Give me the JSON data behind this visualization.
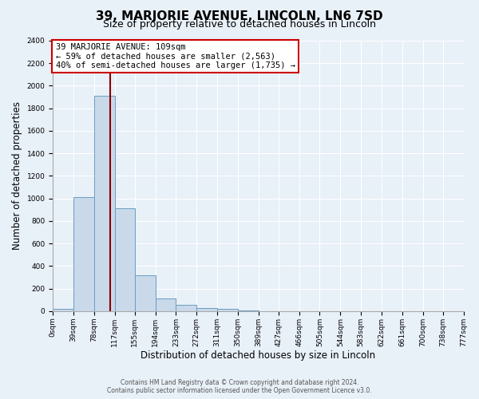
{
  "title": "39, MARJORIE AVENUE, LINCOLN, LN6 7SD",
  "subtitle": "Size of property relative to detached houses in Lincoln",
  "xlabel": "Distribution of detached houses by size in Lincoln",
  "ylabel": "Number of detached properties",
  "bin_edges": [
    0,
    39,
    78,
    117,
    155,
    194,
    233,
    272,
    311,
    350,
    389,
    427,
    466,
    505,
    544,
    583,
    622,
    661,
    700,
    738,
    777
  ],
  "counts": [
    20,
    1010,
    1910,
    910,
    320,
    110,
    55,
    30,
    20,
    5,
    1,
    0,
    0,
    0,
    0,
    0,
    0,
    0,
    0,
    0
  ],
  "bar_color": "#c9d9ea",
  "bar_edge_color": "#6b9dc2",
  "property_line_x": 109,
  "property_line_color": "#8b0000",
  "annotation_line1": "39 MARJORIE AVENUE: 109sqm",
  "annotation_line2": "← 59% of detached houses are smaller (2,563)",
  "annotation_line3": "40% of semi-detached houses are larger (1,735) →",
  "annotation_box_color": "#ffffff",
  "annotation_box_edge_color": "#cc0000",
  "ylim": [
    0,
    2400
  ],
  "yticks": [
    0,
    200,
    400,
    600,
    800,
    1000,
    1200,
    1400,
    1600,
    1800,
    2000,
    2200,
    2400
  ],
  "bg_color": "#e8f0f8",
  "plot_bg_color": "#e8f0f8",
  "footer1": "Contains HM Land Registry data © Crown copyright and database right 2024.",
  "footer2": "Contains public sector information licensed under the Open Government Licence v3.0.",
  "title_fontsize": 11,
  "subtitle_fontsize": 9,
  "tick_label_fontsize": 6.5,
  "axis_label_fontsize": 8.5,
  "annotation_fontsize": 7.5
}
